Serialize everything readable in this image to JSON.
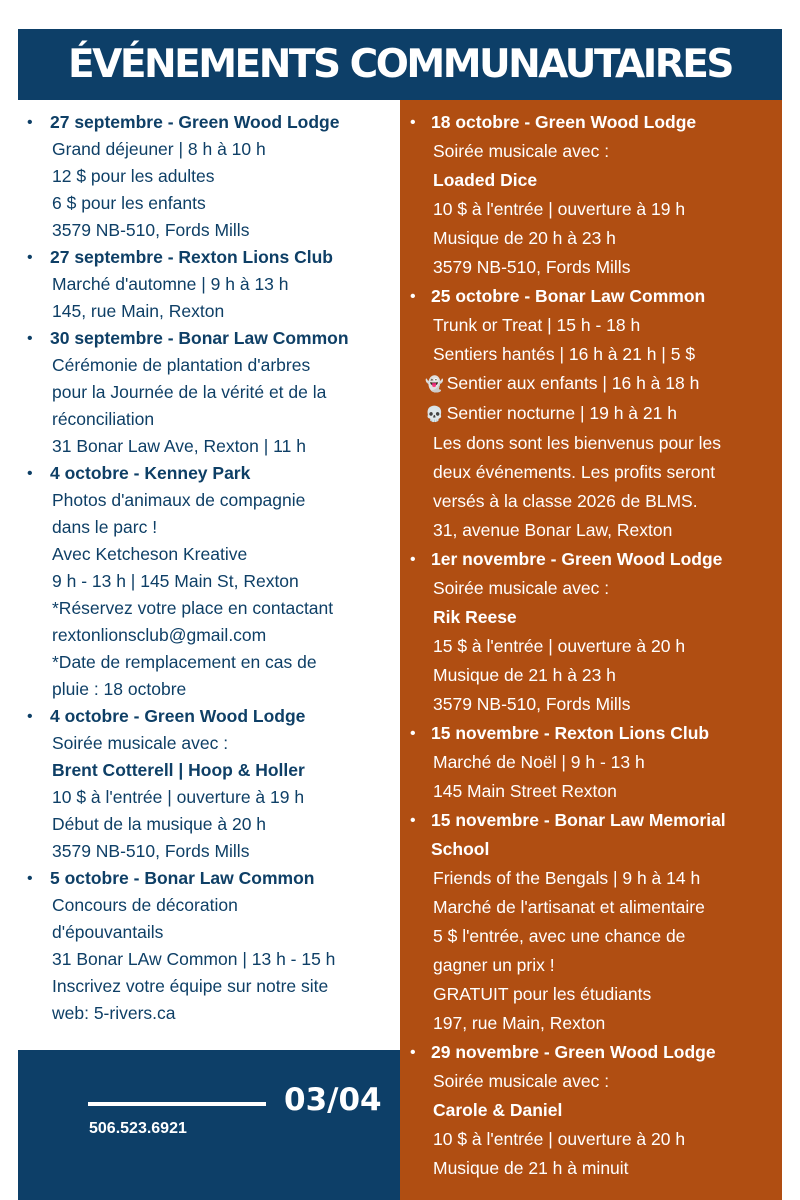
{
  "header": {
    "title": "ÉVÉNEMENTS COMMUNAUTAIRES"
  },
  "colors": {
    "navy": "#0d3f68",
    "orange": "#b04e12",
    "text_navy": "#0e3f66"
  },
  "left_events": [
    {
      "title": "27 septembre - Green Wood Lodge",
      "lines": [
        {
          "text": "Grand déjeuner | 8 h à 10 h"
        },
        {
          "text": "12 $ pour les adultes"
        },
        {
          "text": "6 $ pour les enfants"
        },
        {
          "text": "3579 NB-510, Fords Mills"
        }
      ]
    },
    {
      "title": "27 septembre - Rexton Lions Club",
      "lines": [
        {
          "text": "Marché d'automne | 9 h à 13 h"
        },
        {
          "text": "145, rue Main, Rexton"
        }
      ]
    },
    {
      "title": "30 septembre - Bonar Law Common",
      "lines": [
        {
          "text": "Cérémonie de plantation d'arbres"
        },
        {
          "text": "pour la Journée de la vérité et de la"
        },
        {
          "text": "réconciliation"
        },
        {
          "text": "31 Bonar Law Ave, Rexton | 11 h"
        }
      ]
    },
    {
      "title": "4 octobre - Kenney Park",
      "lines": [
        {
          "text": "Photos d'animaux de compagnie"
        },
        {
          "text": "dans le parc !"
        },
        {
          "text": "Avec Ketcheson Kreative"
        },
        {
          "text": "9 h - 13 h | 145 Main St, Rexton"
        },
        {
          "text": "*Réservez votre place en contactant"
        },
        {
          "text": "rextonlionsclub@gmail.com"
        },
        {
          "text": "*Date de remplacement en cas de"
        },
        {
          "text": "pluie : 18 octobre"
        }
      ]
    },
    {
      "title": "4 octobre - Green Wood Lodge",
      "lines": [
        {
          "text": "Soirée musicale avec :"
        },
        {
          "text": "Brent Cotterell | Hoop & Holler",
          "bold": true
        },
        {
          "text": "10 $ à l'entrée | ouverture à 19 h"
        },
        {
          "text": "Début de la musique à 20 h"
        },
        {
          "text": "3579 NB-510, Fords Mills"
        }
      ]
    },
    {
      "title": "5 octobre - Bonar Law Common",
      "lines": [
        {
          "text": "Concours de décoration"
        },
        {
          "text": "d'épouvantails"
        },
        {
          "text": "31 Bonar LAw Common | 13 h - 15 h"
        },
        {
          "text": "Inscrivez votre équipe sur notre site"
        },
        {
          "text": "web: 5-rivers.ca"
        }
      ]
    }
  ],
  "right_events": [
    {
      "title": "18 octobre - Green Wood Lodge",
      "lines": [
        {
          "text": "Soirée musicale avec :"
        },
        {
          "text": "Loaded Dice",
          "bold": true
        },
        {
          "text": "10 $ à l'entrée | ouverture à 19 h"
        },
        {
          "text": "Musique de 20 h à 23 h"
        },
        {
          "text": "3579 NB-510, Fords Mills"
        }
      ]
    },
    {
      "title": "25 octobre - Bonar Law Common",
      "lines": [
        {
          "text": "Trunk or Treat | 15 h - 18 h"
        },
        {
          "text": "Sentiers hantés | 16 h à 21 h | 5 $"
        },
        {
          "text": "Sentier aux enfants | 16 h à 18 h",
          "icon": "ghost"
        },
        {
          "text": "Sentier nocturne | 19 h à 21 h",
          "icon": "skull"
        },
        {
          "text": "Les dons sont les bienvenus pour les"
        },
        {
          "text": "deux événements. Les profits seront"
        },
        {
          "text": "versés à la classe 2026 de BLMS."
        },
        {
          "text": "31, avenue Bonar Law, Rexton"
        }
      ]
    },
    {
      "title": "1er novembre - Green Wood Lodge",
      "lines": [
        {
          "text": "Soirée musicale avec :"
        },
        {
          "text": "Rik Reese",
          "bold": true
        },
        {
          "text": "15 $ à l'entrée | ouverture à 20 h"
        },
        {
          "text": "Musique de 21 h à 23 h"
        },
        {
          "text": "3579 NB-510, Fords Mills"
        }
      ]
    },
    {
      "title": "15 novembre - Rexton Lions Club",
      "lines": [
        {
          "text": "Marché de Noël | 9 h - 13 h"
        },
        {
          "text": "145 Main Street Rexton"
        }
      ]
    },
    {
      "title": "15 novembre - Bonar Law Memorial",
      "title2": "School",
      "lines": [
        {
          "text": "Friends of the Bengals | 9 h à 14 h"
        },
        {
          "text": "Marché de l'artisanat et alimentaire"
        },
        {
          "text": "5 $ l'entrée, avec une chance de"
        },
        {
          "text": "gagner un prix !"
        },
        {
          "text": "GRATUIT pour les étudiants"
        },
        {
          "text": "197, rue Main, Rexton"
        }
      ]
    },
    {
      "title": "29 novembre - Green Wood Lodge",
      "lines": [
        {
          "text": "Soirée musicale avec :"
        },
        {
          "text": "Carole & Daniel",
          "bold": true
        },
        {
          "text": "10 $ à l'entrée | ouverture à 20 h"
        },
        {
          "text": "Musique de 21 h à minuit"
        }
      ]
    }
  ],
  "footer": {
    "page": "03/04",
    "phone": "506.523.6921"
  }
}
